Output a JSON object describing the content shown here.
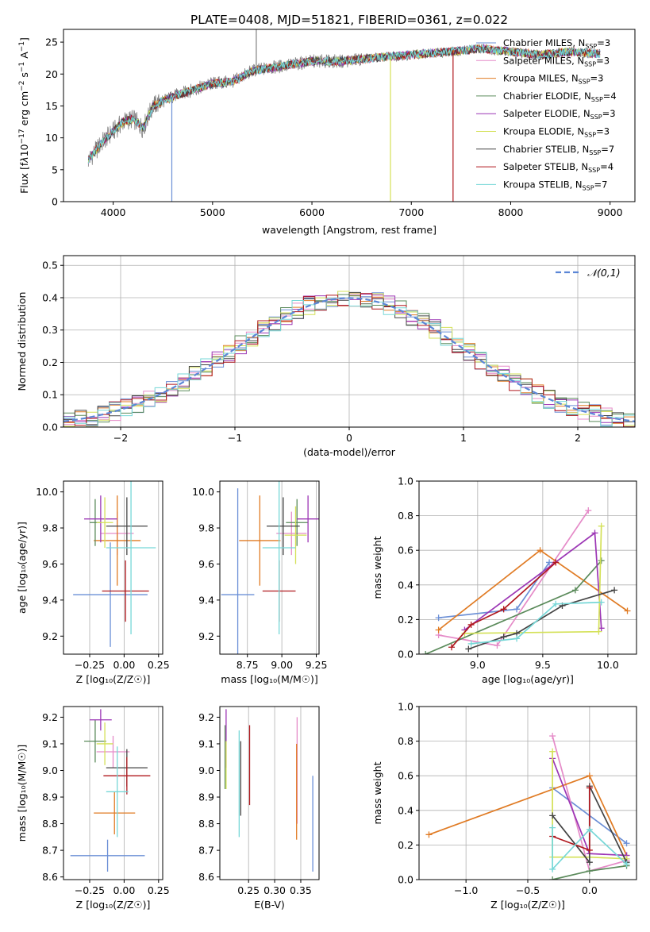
{
  "title": "PLATE=0408, MJD=51821, FIBERID=0361, z=0.022",
  "colors": {
    "Chabrier MILES": "#6b8fd6",
    "Salpeter MILES": "#e58bc8",
    "Kroupa MILES": "#e07b24",
    "Chabrier ELODIE": "#5a8a5a",
    "Salpeter ELODIE": "#9c36b5",
    "Kroupa ELODIE": "#d4e157",
    "Chabrier STELIB": "#444444",
    "Salpeter STELIB": "#b0181e",
    "Kroupa STELIB": "#76d7d7",
    "data": "#808080",
    "normal": "#5b86d6"
  },
  "chart_data": [
    {
      "id": "spectrum",
      "type": "line",
      "xlabel": "wavelength [Angstrom, rest frame]",
      "ylabel": "Flux [f",
      "xlim": [
        3500,
        9250
      ],
      "ylim": [
        0,
        27
      ],
      "xticks": [
        4000,
        5000,
        6000,
        7000,
        8000,
        9000
      ],
      "yticks": [
        0,
        5,
        10,
        15,
        20,
        25
      ],
      "grid": false,
      "legend_position": "top-right",
      "legend": [
        {
          "label": "Chabrier MILES, N",
          "sub": "SSP",
          "tail": "=3",
          "color": "Chabrier MILES"
        },
        {
          "label": "Salpeter MILES, N",
          "sub": "SSP",
          "tail": "=3",
          "color": "Salpeter MILES"
        },
        {
          "label": "Kroupa MILES, N",
          "sub": "SSP",
          "tail": "=3",
          "color": "Kroupa MILES"
        },
        {
          "label": "Chabrier ELODIE, N",
          "sub": "SSP",
          "tail": "=4",
          "color": "Chabrier ELODIE"
        },
        {
          "label": "Salpeter ELODIE, N",
          "sub": "SSP",
          "tail": "=3",
          "color": "Salpeter ELODIE"
        },
        {
          "label": "Kroupa ELODIE, N",
          "sub": "SSP",
          "tail": "=3",
          "color": "Kroupa ELODIE"
        },
        {
          "label": "Chabrier STELIB, N",
          "sub": "SSP",
          "tail": "=7",
          "color": "Chabrier STELIB"
        },
        {
          "label": "Salpeter STELIB, N",
          "sub": "SSP",
          "tail": "=4",
          "color": "Salpeter STELIB"
        },
        {
          "label": "Kroupa STELIB, N",
          "sub": "SSP",
          "tail": "=7",
          "color": "Kroupa STELIB"
        }
      ],
      "continuum": [
        [
          3750,
          6.5
        ],
        [
          3900,
          9.5
        ],
        [
          4000,
          11
        ],
        [
          4100,
          12.5
        ],
        [
          4200,
          13
        ],
        [
          4300,
          11.5
        ],
        [
          4400,
          15
        ],
        [
          4600,
          16.5
        ],
        [
          4800,
          17.5
        ],
        [
          5000,
          18.5
        ],
        [
          5200,
          18.8
        ],
        [
          5400,
          20.5
        ],
        [
          5600,
          21
        ],
        [
          5800,
          21.5
        ],
        [
          6000,
          22
        ],
        [
          6300,
          22
        ],
        [
          6600,
          22.5
        ],
        [
          7000,
          23
        ],
        [
          7400,
          23.5
        ],
        [
          7700,
          24
        ],
        [
          8000,
          23.5
        ],
        [
          8300,
          23
        ],
        [
          8600,
          23.5
        ],
        [
          9000,
          23
        ]
      ],
      "spikes": [
        [
          4590,
          0,
          "Chabrier MILES"
        ],
        [
          5440,
          27,
          "data"
        ],
        [
          6790,
          0,
          "Kroupa ELODIE"
        ],
        [
          7420,
          0,
          "Salpeter STELIB"
        ]
      ]
    },
    {
      "id": "residuals",
      "type": "step",
      "xlabel": "(data-model)/error",
      "ylabel": "Normed distribution",
      "xlim": [
        -2.5,
        2.5
      ],
      "ylim": [
        0,
        0.53
      ],
      "xticks": [
        -2,
        -1,
        0,
        1,
        2
      ],
      "yticks": [
        0.0,
        0.1,
        0.2,
        0.3,
        0.4,
        0.5
      ],
      "grid": true,
      "legend_position": "top-right",
      "legend_label": "𝒩(0,1)",
      "normal": {
        "mu": 0,
        "sigma": 1
      }
    },
    {
      "id": "Z-age",
      "type": "errorbar",
      "xlabel": "Z [log₁₀(Z/Z☉)]",
      "ylabel": "age  [log₁₀(age/yr)]",
      "xlim": [
        -0.44,
        0.28
      ],
      "ylim": [
        9.1,
        10.06
      ],
      "xticks": [
        -0.25,
        0.0,
        0.25
      ],
      "yticks": [
        9.2,
        9.4,
        9.6,
        9.8,
        10.0
      ],
      "points": [
        {
          "model": "Chabrier MILES",
          "x": -0.1,
          "xerr": 0.27,
          "y": 9.43,
          "yerr": 0.29
        },
        {
          "model": "Salpeter MILES",
          "x": -0.05,
          "xerr": 0.12,
          "y": 9.77,
          "yerr": 0.12
        },
        {
          "model": "Kroupa MILES",
          "x": -0.05,
          "xerr": 0.17,
          "y": 9.73,
          "yerr": 0.25
        },
        {
          "model": "Chabrier ELODIE",
          "x": -0.21,
          "xerr": 0.04,
          "y": 9.83,
          "yerr": 0.13
        },
        {
          "model": "Salpeter ELODIE",
          "x": -0.17,
          "xerr": 0.12,
          "y": 9.85,
          "yerr": 0.13
        },
        {
          "model": "Kroupa ELODIE",
          "x": -0.14,
          "xerr": 0.06,
          "y": 9.83,
          "yerr": 0.14
        },
        {
          "model": "Chabrier STELIB",
          "x": 0.02,
          "xerr": 0.15,
          "y": 9.81,
          "yerr": 0.16
        },
        {
          "model": "Salpeter STELIB",
          "x": 0.01,
          "xerr": 0.17,
          "y": 9.45,
          "yerr": 0.17
        },
        {
          "model": "Kroupa STELIB",
          "x": 0.05,
          "xerr": 0.18,
          "y": 9.69,
          "yerr": 0.48
        }
      ]
    },
    {
      "id": "mass-age",
      "type": "errorbar",
      "xlabel": "mass [log₁₀(M/M☉)]",
      "ylabel": "",
      "xlim": [
        8.55,
        9.27
      ],
      "ylim": [
        9.1,
        10.06
      ],
      "xticks": [
        8.75,
        9.0,
        9.25
      ],
      "yticks": [
        9.2,
        9.4,
        9.6,
        9.8,
        10.0
      ],
      "points": [
        {
          "model": "Chabrier MILES",
          "x": 8.68,
          "xerr": 0.12,
          "y": 9.43,
          "yerr": 0.59
        },
        {
          "model": "Salpeter MILES",
          "x": 9.07,
          "xerr": 0.11,
          "y": 9.77,
          "yerr": 0.12
        },
        {
          "model": "Kroupa MILES",
          "x": 8.84,
          "xerr": 0.15,
          "y": 9.73,
          "yerr": 0.25
        },
        {
          "model": "Chabrier ELODIE",
          "x": 9.11,
          "xerr": 0.08,
          "y": 9.83,
          "yerr": 0.13
        },
        {
          "model": "Salpeter ELODIE",
          "x": 9.19,
          "xerr": 0.08,
          "y": 9.85,
          "yerr": 0.13
        },
        {
          "model": "Kroupa ELODIE",
          "x": 9.1,
          "xerr": 0.08,
          "y": 9.76,
          "yerr": 0.16
        },
        {
          "model": "Chabrier STELIB",
          "x": 9.01,
          "xerr": 0.12,
          "y": 9.81,
          "yerr": 0.16
        },
        {
          "model": "Salpeter STELIB",
          "x": 8.98,
          "xerr": 0.12,
          "y": 9.45,
          "yerr": 0.17
        },
        {
          "model": "Kroupa STELIB",
          "x": 8.98,
          "xerr": 0.12,
          "y": 9.69,
          "yerr": 0.48
        }
      ]
    },
    {
      "id": "age-weight",
      "type": "line",
      "xlabel": "age  [log₁₀(age/yr)]",
      "ylabel": "mass weight",
      "xlim": [
        8.55,
        10.22
      ],
      "ylim": [
        0,
        1.0
      ],
      "xticks": [
        9.0,
        9.5,
        10.0
      ],
      "yticks": [
        0.0,
        0.2,
        0.4,
        0.6,
        0.8,
        1.0
      ],
      "grid": true,
      "series": [
        {
          "model": "Chabrier MILES",
          "x": [
            8.7,
            9.3,
            9.55
          ],
          "y": [
            0.21,
            0.26,
            0.53
          ]
        },
        {
          "model": "Salpeter MILES",
          "x": [
            8.7,
            9.15,
            9.85
          ],
          "y": [
            0.11,
            0.05,
            0.83
          ]
        },
        {
          "model": "Kroupa MILES",
          "x": [
            8.7,
            9.48,
            10.15
          ],
          "y": [
            0.14,
            0.6,
            0.25
          ]
        },
        {
          "model": "Chabrier ELODIE",
          "x": [
            8.6,
            9.75,
            9.95
          ],
          "y": [
            0.0,
            0.37,
            0.54
          ]
        },
        {
          "model": "Salpeter ELODIE",
          "x": [
            8.9,
            9.9,
            9.95
          ],
          "y": [
            0.14,
            0.7,
            0.15
          ]
        },
        {
          "model": "Kroupa ELODIE",
          "x": [
            8.9,
            9.93,
            9.95
          ],
          "y": [
            0.12,
            0.13,
            0.74
          ]
        },
        {
          "model": "Chabrier STELIB",
          "x": [
            8.93,
            9.2,
            9.3,
            9.65,
            10.05
          ],
          "y": [
            0.03,
            0.1,
            0.12,
            0.28,
            0.37
          ]
        },
        {
          "model": "Salpeter STELIB",
          "x": [
            8.8,
            8.95,
            9.2,
            9.6
          ],
          "y": [
            0.04,
            0.17,
            0.26,
            0.53
          ]
        },
        {
          "model": "Kroupa STELIB",
          "x": [
            8.95,
            9.3,
            9.6,
            9.95
          ],
          "y": [
            0.06,
            0.09,
            0.29,
            0.3
          ]
        }
      ]
    },
    {
      "id": "Z-mass",
      "type": "errorbar",
      "xlabel": "Z [log₁₀(Z/Z☉)]",
      "ylabel": "mass [log₁₀(M/M☉)]",
      "xlim": [
        -0.44,
        0.28
      ],
      "ylim": [
        8.59,
        9.24
      ],
      "xticks": [
        -0.25,
        0.0,
        0.25
      ],
      "yticks": [
        8.6,
        8.7,
        8.8,
        8.9,
        9.0,
        9.1,
        9.2
      ],
      "points": [
        {
          "model": "Chabrier MILES",
          "x": -0.12,
          "xerr": 0.27,
          "y": 8.68,
          "yerr": 0.06
        },
        {
          "model": "Salpeter MILES",
          "x": -0.08,
          "xerr": 0.12,
          "y": 9.07,
          "yerr": 0.06
        },
        {
          "model": "Kroupa MILES",
          "x": -0.07,
          "xerr": 0.15,
          "y": 8.84,
          "yerr": 0.08
        },
        {
          "model": "Chabrier ELODIE",
          "x": -0.21,
          "xerr": 0.08,
          "y": 9.11,
          "yerr": 0.08
        },
        {
          "model": "Salpeter ELODIE",
          "x": -0.17,
          "xerr": 0.08,
          "y": 9.19,
          "yerr": 0.04
        },
        {
          "model": "Kroupa ELODIE",
          "x": -0.14,
          "xerr": 0.06,
          "y": 9.1,
          "yerr": 0.08
        },
        {
          "model": "Chabrier STELIB",
          "x": 0.02,
          "xerr": 0.15,
          "y": 9.01,
          "yerr": 0.07
        },
        {
          "model": "Salpeter STELIB",
          "x": 0.02,
          "xerr": 0.17,
          "y": 8.98,
          "yerr": 0.07
        },
        {
          "model": "Kroupa STELIB",
          "x": -0.05,
          "xerr": 0.08,
          "y": 8.92,
          "yerr": 0.17
        }
      ]
    },
    {
      "id": "ebv-mass",
      "type": "errorbar",
      "xlabel": "E(B-V)",
      "ylabel": "",
      "xlim": [
        0.195,
        0.385
      ],
      "ylim": [
        8.59,
        9.24
      ],
      "xticks": [
        0.25,
        0.3,
        0.35
      ],
      "yticks": [
        8.6,
        8.7,
        8.8,
        8.9,
        9.0,
        9.1,
        9.2
      ],
      "points": [
        {
          "model": "Chabrier MILES",
          "x": 0.373,
          "y": 8.8,
          "yerr": 0.18
        },
        {
          "model": "Salpeter MILES",
          "x": 0.343,
          "y": 9.0,
          "yerr": 0.2
        },
        {
          "model": "Kroupa MILES",
          "x": 0.342,
          "y": 8.92,
          "yerr": 0.18
        },
        {
          "model": "Chabrier ELODIE",
          "x": 0.205,
          "y": 9.05,
          "yerr": 0.12
        },
        {
          "model": "Salpeter ELODIE",
          "x": 0.207,
          "y": 9.12,
          "yerr": 0.11
        },
        {
          "model": "Kroupa ELODIE",
          "x": 0.207,
          "y": 9.02,
          "yerr": 0.09
        },
        {
          "model": "Chabrier STELIB",
          "x": 0.235,
          "y": 8.97,
          "yerr": 0.14
        },
        {
          "model": "Salpeter STELIB",
          "x": 0.252,
          "y": 9.02,
          "yerr": 0.15
        },
        {
          "model": "Kroupa STELIB",
          "x": 0.232,
          "y": 8.95,
          "yerr": 0.2
        }
      ]
    },
    {
      "id": "Z-weight",
      "type": "line",
      "xlabel": "Z [log₁₀(Z/Z☉)]",
      "ylabel": "mass weight",
      "xlim": [
        -1.38,
        0.38
      ],
      "ylim": [
        0,
        1.0
      ],
      "xticks": [
        -1.0,
        -0.5,
        0.0
      ],
      "yticks": [
        0.0,
        0.2,
        0.4,
        0.6,
        0.8,
        1.0
      ],
      "grid": true,
      "series": [
        {
          "model": "Chabrier MILES",
          "x": [
            -0.3,
            0.3
          ],
          "y": [
            0.53,
            0.21
          ]
        },
        {
          "model": "Salpeter MILES",
          "x": [
            -0.3,
            0.0,
            0.3
          ],
          "y": [
            0.83,
            0.05,
            0.11
          ]
        },
        {
          "model": "Kroupa MILES",
          "x": [
            -1.3,
            0.0,
            0.3
          ],
          "y": [
            0.26,
            0.6,
            0.14
          ]
        },
        {
          "model": "Chabrier ELODIE",
          "x": [
            -0.3,
            0.0,
            0.3
          ],
          "y": [
            0.0,
            0.05,
            0.08
          ]
        },
        {
          "model": "Salpeter ELODIE",
          "x": [
            -0.3,
            0.0,
            0.3
          ],
          "y": [
            0.7,
            0.15,
            0.14
          ]
        },
        {
          "model": "Kroupa ELODIE",
          "x": [
            -0.3,
            -0.3,
            0.0,
            0.3
          ],
          "y": [
            0.74,
            0.13,
            0.13,
            0.12
          ]
        },
        {
          "model": "Chabrier STELIB",
          "x": [
            -0.3,
            0.0,
            0.0,
            0.3
          ],
          "y": [
            0.37,
            0.1,
            0.54,
            0.1
          ]
        },
        {
          "model": "Salpeter STELIB",
          "x": [
            -0.3,
            0.0,
            0.0
          ],
          "y": [
            0.25,
            0.17,
            0.53
          ]
        },
        {
          "model": "Kroupa STELIB",
          "x": [
            -0.3,
            -0.3,
            0.0,
            0.3
          ],
          "y": [
            0.3,
            0.06,
            0.29,
            0.09
          ]
        }
      ]
    }
  ]
}
